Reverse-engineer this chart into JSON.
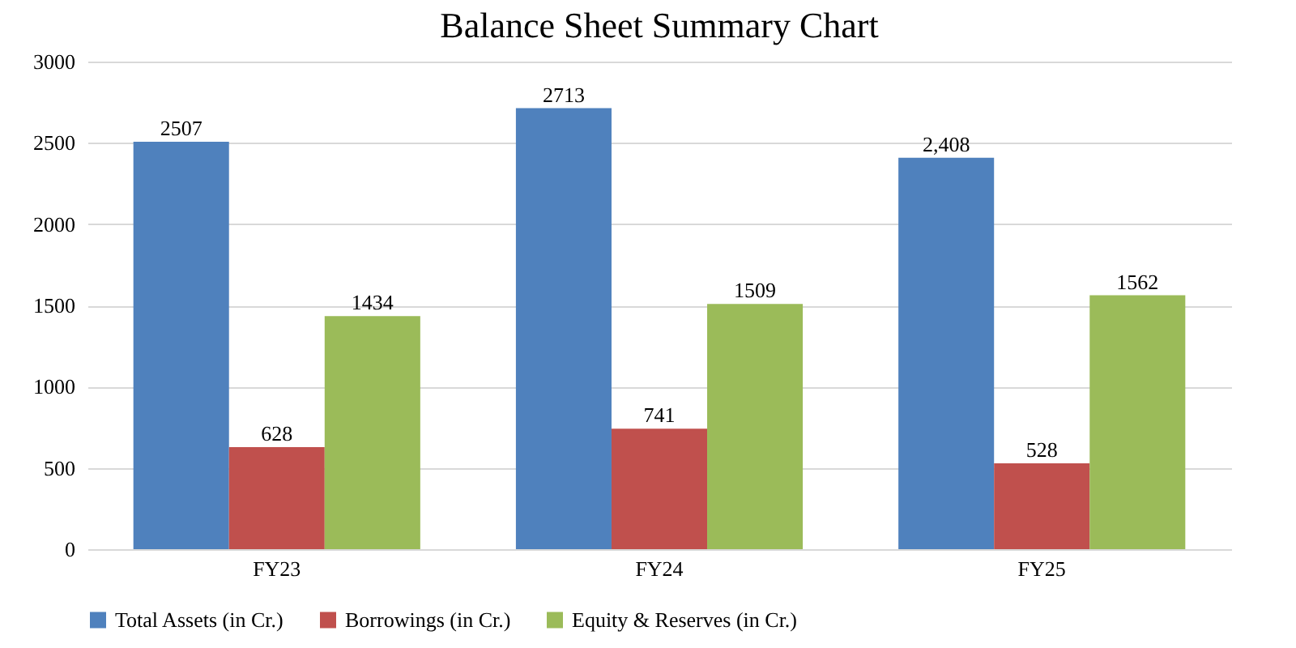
{
  "chart_data": {
    "type": "bar",
    "title": "Balance Sheet Summary Chart",
    "categories": [
      "FY23",
      "FY24",
      "FY25"
    ],
    "series": [
      {
        "name": "Total Assets (in Cr.)",
        "color": "#4f81bd",
        "values": [
          2507,
          2713,
          2408
        ],
        "value_labels": [
          "2507",
          "2713",
          "2,408"
        ]
      },
      {
        "name": "Borrowings (in Cr.)",
        "color": "#c0504d",
        "values": [
          628,
          741,
          528
        ],
        "value_labels": [
          "628",
          "741",
          "528"
        ]
      },
      {
        "name": "Equity & Reserves (in Cr.)",
        "color": "#9bbb59",
        "values": [
          1434,
          1509,
          1562
        ],
        "value_labels": [
          "1434",
          "1509",
          "1562"
        ]
      }
    ],
    "ylim": [
      0,
      3000
    ],
    "yticks": [
      0,
      500,
      1000,
      1500,
      2000,
      2500,
      3000
    ],
    "grid": "y",
    "legend": "bottom"
  }
}
